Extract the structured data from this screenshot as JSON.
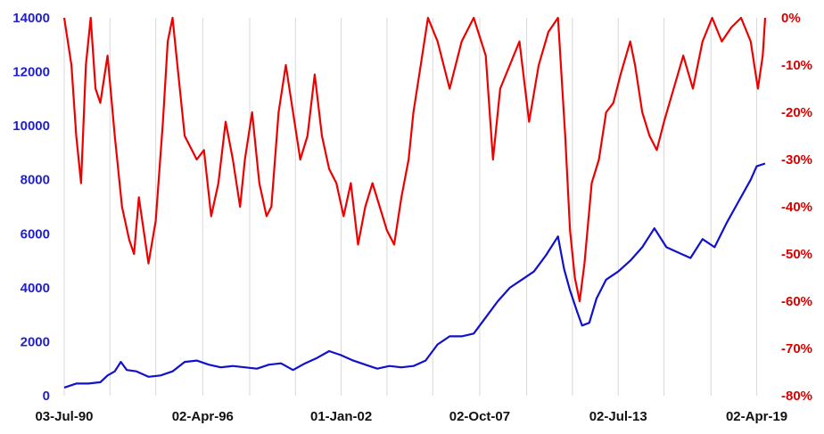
{
  "chart_data": {
    "type": "line",
    "title": "",
    "xlabel": "",
    "ylabel": "",
    "x_tick_labels": [
      "03-Jul-90",
      "02-Apr-96",
      "01-Jan-02",
      "02-Oct-07",
      "02-Jul-13",
      "02-Apr-19"
    ],
    "x_tick_years": [
      1990.5,
      1996.25,
      2002.0,
      2007.75,
      2013.5,
      2019.25
    ],
    "xlim": [
      1990.5,
      2019.6
    ],
    "y_left": {
      "ticks": [
        "0",
        "2000",
        "4000",
        "6000",
        "8000",
        "10000",
        "12000",
        "14000"
      ],
      "ylim": [
        0,
        14000
      ],
      "color": "#1111cc"
    },
    "y_right": {
      "ticks": [
        "-80%",
        "-70%",
        "-60%",
        "-50%",
        "-40%",
        "-30%",
        "-20%",
        "-10%",
        "0%"
      ],
      "ylim": [
        -80,
        0
      ],
      "color": "#ee0000"
    },
    "grid": "vertical",
    "series": [
      {
        "axis": "left",
        "color": "#1111cc",
        "points": [
          [
            1990.5,
            300
          ],
          [
            1991.0,
            450
          ],
          [
            1991.5,
            450
          ],
          [
            1992.0,
            500
          ],
          [
            1992.3,
            750
          ],
          [
            1992.6,
            900
          ],
          [
            1992.85,
            1250
          ],
          [
            1993.1,
            950
          ],
          [
            1993.5,
            900
          ],
          [
            1994.0,
            700
          ],
          [
            1994.5,
            750
          ],
          [
            1995.0,
            900
          ],
          [
            1995.5,
            1250
          ],
          [
            1996.0,
            1300
          ],
          [
            1996.5,
            1150
          ],
          [
            1997.0,
            1050
          ],
          [
            1997.5,
            1100
          ],
          [
            1998.0,
            1050
          ],
          [
            1998.5,
            1000
          ],
          [
            1999.0,
            1150
          ],
          [
            1999.5,
            1200
          ],
          [
            2000.0,
            950
          ],
          [
            2000.5,
            1200
          ],
          [
            2001.0,
            1400
          ],
          [
            2001.5,
            1650
          ],
          [
            2002.0,
            1500
          ],
          [
            2002.5,
            1300
          ],
          [
            2003.0,
            1150
          ],
          [
            2003.5,
            1000
          ],
          [
            2004.0,
            1100
          ],
          [
            2004.5,
            1050
          ],
          [
            2005.0,
            1100
          ],
          [
            2005.5,
            1300
          ],
          [
            2006.0,
            1900
          ],
          [
            2006.5,
            2200
          ],
          [
            2007.0,
            2200
          ],
          [
            2007.5,
            2300
          ],
          [
            2008.0,
            2900
          ],
          [
            2008.5,
            3500
          ],
          [
            2009.0,
            4000
          ],
          [
            2009.5,
            4300
          ],
          [
            2010.0,
            4600
          ],
          [
            2010.5,
            5200
          ],
          [
            2011.0,
            5900
          ],
          [
            2011.25,
            4700
          ],
          [
            2011.5,
            3900
          ],
          [
            2011.8,
            3100
          ],
          [
            2012.0,
            2600
          ],
          [
            2012.3,
            2700
          ],
          [
            2012.6,
            3600
          ],
          [
            2013.0,
            4300
          ],
          [
            2013.5,
            4600
          ],
          [
            2014.0,
            5000
          ],
          [
            2014.5,
            5500
          ],
          [
            2015.0,
            6200
          ],
          [
            2015.5,
            5500
          ],
          [
            2016.0,
            5300
          ],
          [
            2016.5,
            5100
          ],
          [
            2017.0,
            5800
          ],
          [
            2017.5,
            5500
          ],
          [
            2018.0,
            6400
          ],
          [
            2018.5,
            7200
          ],
          [
            2019.0,
            8000
          ],
          [
            2019.25,
            8500
          ],
          [
            2019.6,
            8600
          ]
        ]
      },
      {
        "axis": "right",
        "color": "#ee0000",
        "points": [
          [
            1990.5,
            0
          ],
          [
            1990.8,
            -10
          ],
          [
            1991.0,
            -25
          ],
          [
            1991.2,
            -35
          ],
          [
            1991.4,
            -10
          ],
          [
            1991.6,
            0
          ],
          [
            1991.8,
            -15
          ],
          [
            1992.0,
            -18
          ],
          [
            1992.3,
            -8
          ],
          [
            1992.6,
            -25
          ],
          [
            1992.9,
            -40
          ],
          [
            1993.2,
            -47
          ],
          [
            1993.4,
            -50
          ],
          [
            1993.6,
            -38
          ],
          [
            1993.8,
            -45
          ],
          [
            1994.0,
            -52
          ],
          [
            1994.3,
            -43
          ],
          [
            1994.6,
            -22
          ],
          [
            1994.8,
            -5
          ],
          [
            1995.0,
            0
          ],
          [
            1995.2,
            -10
          ],
          [
            1995.5,
            -25
          ],
          [
            1995.8,
            -28
          ],
          [
            1996.0,
            -30
          ],
          [
            1996.3,
            -28
          ],
          [
            1996.6,
            -42
          ],
          [
            1996.9,
            -35
          ],
          [
            1997.2,
            -22
          ],
          [
            1997.5,
            -30
          ],
          [
            1997.8,
            -40
          ],
          [
            1998.0,
            -30
          ],
          [
            1998.3,
            -20
          ],
          [
            1998.6,
            -35
          ],
          [
            1998.9,
            -42
          ],
          [
            1999.1,
            -40
          ],
          [
            1999.4,
            -20
          ],
          [
            1999.7,
            -10
          ],
          [
            2000.0,
            -20
          ],
          [
            2000.3,
            -30
          ],
          [
            2000.6,
            -25
          ],
          [
            2000.9,
            -12
          ],
          [
            2001.2,
            -25
          ],
          [
            2001.5,
            -32
          ],
          [
            2001.8,
            -35
          ],
          [
            2002.1,
            -42
          ],
          [
            2002.4,
            -35
          ],
          [
            2002.7,
            -48
          ],
          [
            2003.0,
            -40
          ],
          [
            2003.3,
            -35
          ],
          [
            2003.6,
            -40
          ],
          [
            2003.9,
            -45
          ],
          [
            2004.2,
            -48
          ],
          [
            2004.5,
            -38
          ],
          [
            2004.8,
            -30
          ],
          [
            2005.0,
            -20
          ],
          [
            2005.3,
            -10
          ],
          [
            2005.6,
            0
          ],
          [
            2006.0,
            -5
          ],
          [
            2006.5,
            -15
          ],
          [
            2007.0,
            -5
          ],
          [
            2007.5,
            0
          ],
          [
            2008.0,
            -8
          ],
          [
            2008.3,
            -30
          ],
          [
            2008.6,
            -15
          ],
          [
            2009.0,
            -10
          ],
          [
            2009.4,
            -5
          ],
          [
            2009.8,
            -22
          ],
          [
            2010.2,
            -10
          ],
          [
            2010.6,
            -3
          ],
          [
            2011.0,
            0
          ],
          [
            2011.3,
            -25
          ],
          [
            2011.5,
            -45
          ],
          [
            2011.7,
            -55
          ],
          [
            2011.9,
            -60
          ],
          [
            2012.1,
            -52
          ],
          [
            2012.4,
            -35
          ],
          [
            2012.7,
            -30
          ],
          [
            2013.0,
            -20
          ],
          [
            2013.3,
            -18
          ],
          [
            2013.6,
            -12
          ],
          [
            2014.0,
            -5
          ],
          [
            2014.2,
            -10
          ],
          [
            2014.5,
            -20
          ],
          [
            2014.8,
            -25
          ],
          [
            2015.1,
            -28
          ],
          [
            2015.4,
            -22
          ],
          [
            2015.8,
            -15
          ],
          [
            2016.2,
            -8
          ],
          [
            2016.6,
            -15
          ],
          [
            2017.0,
            -5
          ],
          [
            2017.4,
            0
          ],
          [
            2017.8,
            -5
          ],
          [
            2018.2,
            -2
          ],
          [
            2018.6,
            0
          ],
          [
            2019.0,
            -5
          ],
          [
            2019.3,
            -15
          ],
          [
            2019.5,
            -8
          ],
          [
            2019.6,
            0
          ]
        ]
      }
    ]
  }
}
